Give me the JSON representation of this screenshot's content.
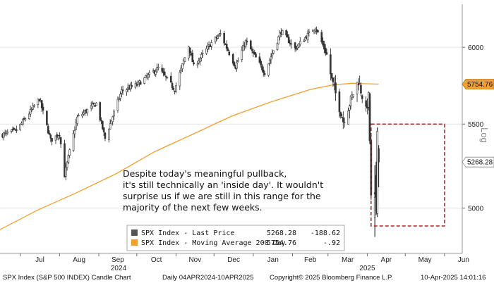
{
  "chart_data": {
    "type": "candlestick",
    "title": "SPX Index (S&P 500 INDEX) Candle Chart",
    "footer": {
      "title": "SPX Index (S&P 500 INDEX) Candle Chart",
      "range": "Daily 04APR2024-10APR2025",
      "copyright": "Copyright© 2025 Bloomberg Finance L.P.",
      "timestamp": "10-Apr-2025 14:01:16"
    },
    "scale": "Log",
    "y_axis": {
      "ticks": [
        "5000",
        "5500",
        "6000"
      ],
      "ylim": [
        4750,
        6300
      ]
    },
    "x_axis": {
      "months": [
        "Jul",
        "Aug",
        "Sep",
        "Oct",
        "Nov",
        "Dec",
        "Jan",
        "Feb",
        "Mar",
        "Apr",
        "May",
        "Jun"
      ],
      "years": [
        "2024",
        "2025"
      ]
    },
    "tags": [
      {
        "label": "5754.76",
        "series": "ma200"
      },
      {
        "label": "5268.28",
        "series": "last"
      }
    ],
    "annotation": [
      "Despite today's meaningful pullback,",
      "it's still technically an 'inside day'. It wouldn't",
      "surprise us if we are still in this range for the",
      "majority of the next few weeks."
    ],
    "legend": [
      {
        "name": "SPX Index - Last Price",
        "value": "5268.28",
        "change": "-188.62",
        "color": "#555555"
      },
      {
        "name": "SPX Index - Moving Average 200 Day",
        "value": "5754.76",
        "change": "-.92",
        "color": "#f0a030"
      }
    ],
    "price_path": [
      [
        "2024-06-15",
        5430
      ],
      [
        "2024-06-28",
        5460
      ],
      [
        "2024-07-10",
        5590
      ],
      [
        "2024-07-16",
        5660
      ],
      [
        "2024-07-25",
        5400
      ],
      [
        "2024-08-01",
        5440
      ],
      [
        "2024-08-05",
        5190
      ],
      [
        "2024-08-15",
        5540
      ],
      [
        "2024-08-30",
        5630
      ],
      [
        "2024-09-06",
        5410
      ],
      [
        "2024-09-19",
        5710
      ],
      [
        "2024-10-01",
        5750
      ],
      [
        "2024-10-18",
        5860
      ],
      [
        "2024-10-31",
        5720
      ],
      [
        "2024-11-11",
        6010
      ],
      [
        "2024-11-15",
        5870
      ],
      [
        "2024-11-29",
        6030
      ],
      [
        "2024-12-06",
        6090
      ],
      [
        "2024-12-18",
        5870
      ],
      [
        "2024-12-26",
        6040
      ],
      [
        "2025-01-10",
        5830
      ],
      [
        "2025-01-23",
        6110
      ],
      [
        "2025-02-03",
        5990
      ],
      [
        "2025-02-19",
        6140
      ],
      [
        "2025-02-28",
        5950
      ],
      [
        "2025-03-04",
        5780
      ],
      [
        "2025-03-13",
        5520
      ],
      [
        "2025-03-25",
        5780
      ],
      [
        "2025-03-31",
        5580
      ],
      [
        "2025-04-02",
        5670
      ],
      [
        "2025-04-03",
        5400
      ],
      [
        "2025-04-04",
        5070
      ],
      [
        "2025-04-07",
        5060
      ],
      [
        "2025-04-08",
        4980
      ],
      [
        "2025-04-09",
        5460
      ],
      [
        "2025-04-10",
        5268
      ]
    ],
    "ma200": [
      [
        "2024-06-15",
        4880
      ],
      [
        "2024-07-15",
        4990
      ],
      [
        "2024-08-15",
        5090
      ],
      [
        "2024-09-15",
        5200
      ],
      [
        "2024-10-15",
        5330
      ],
      [
        "2024-11-15",
        5440
      ],
      [
        "2024-12-15",
        5550
      ],
      [
        "2025-01-15",
        5640
      ],
      [
        "2025-02-15",
        5720
      ],
      [
        "2025-03-05",
        5750
      ],
      [
        "2025-03-20",
        5760
      ],
      [
        "2025-04-10",
        5754.76
      ]
    ],
    "range_box": {
      "x": [
        "2025-04-04",
        "2025-06-01"
      ],
      "y": [
        4900,
        5500
      ]
    }
  }
}
